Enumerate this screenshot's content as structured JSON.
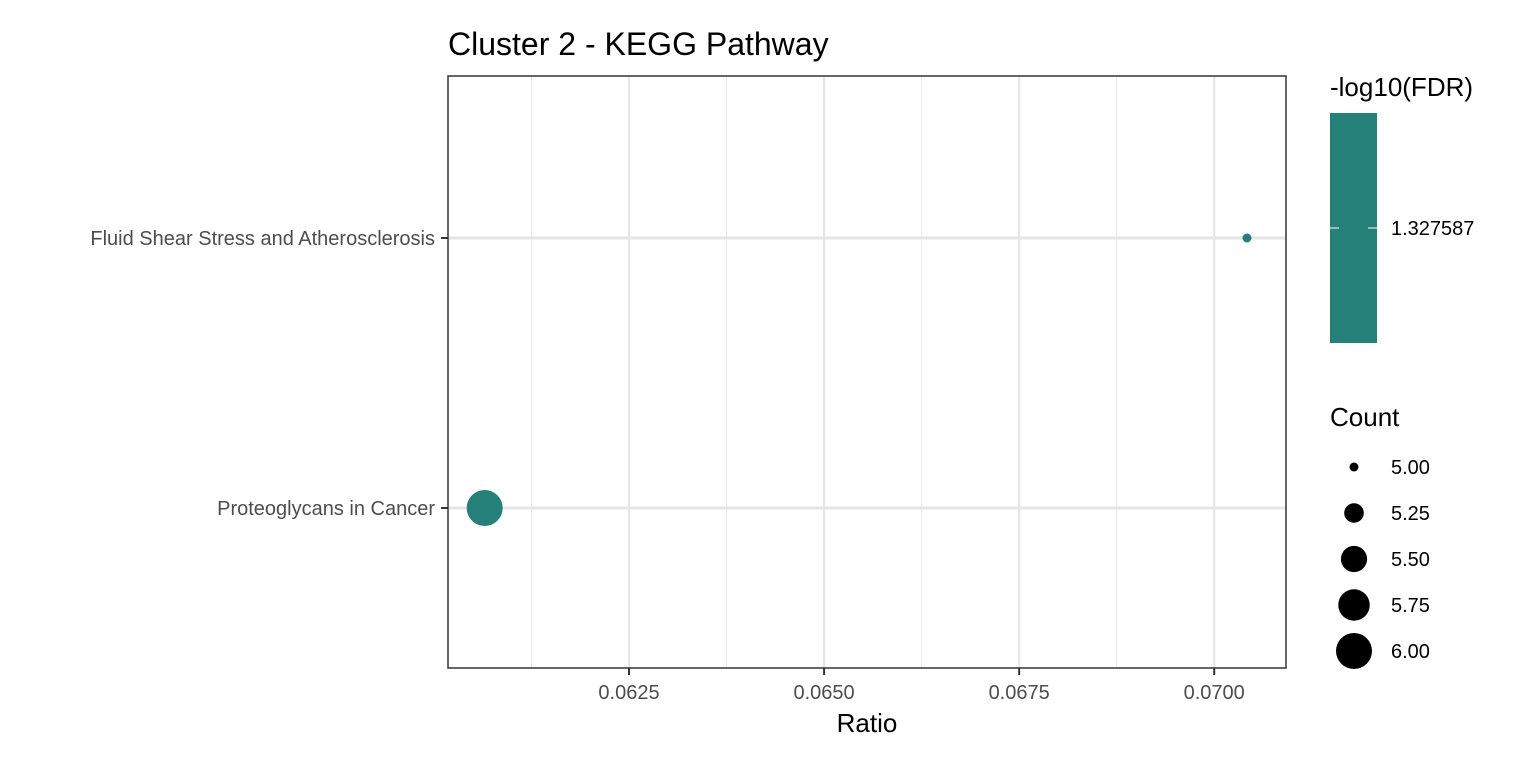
{
  "chart_data": {
    "type": "scatter",
    "title": "Cluster 2 - KEGG Pathway",
    "xlabel": "Ratio",
    "ylabel": "",
    "xlim": [
      0.06018,
      0.07092
    ],
    "x_ticks": [
      "0.0625",
      "0.0650",
      "0.0675",
      "0.0700"
    ],
    "categories": [
      "Fluid Shear Stress and Atherosclerosis",
      "Proteoglycans in Cancer"
    ],
    "points": [
      {
        "category": "Fluid Shear Stress and Atherosclerosis",
        "x": 0.07042,
        "count": 5,
        "neg_log10_fdr": 1.327587
      },
      {
        "category": "Proteoglycans in Cancer",
        "x": 0.06065,
        "count": 6,
        "neg_log10_fdr": 1.327587
      }
    ],
    "grid": true,
    "point_color": "#25807A",
    "color_legend": {
      "title": "-log10(FDR)",
      "value_label": "1.327587",
      "color": "#25807A",
      "placement": "right"
    },
    "size_legend": {
      "title": "Count",
      "values": [
        5.0,
        5.25,
        5.5,
        5.75,
        6.0
      ],
      "labels": [
        "5.00",
        "5.25",
        "5.50",
        "5.75",
        "6.00"
      ],
      "placement": "right"
    }
  }
}
